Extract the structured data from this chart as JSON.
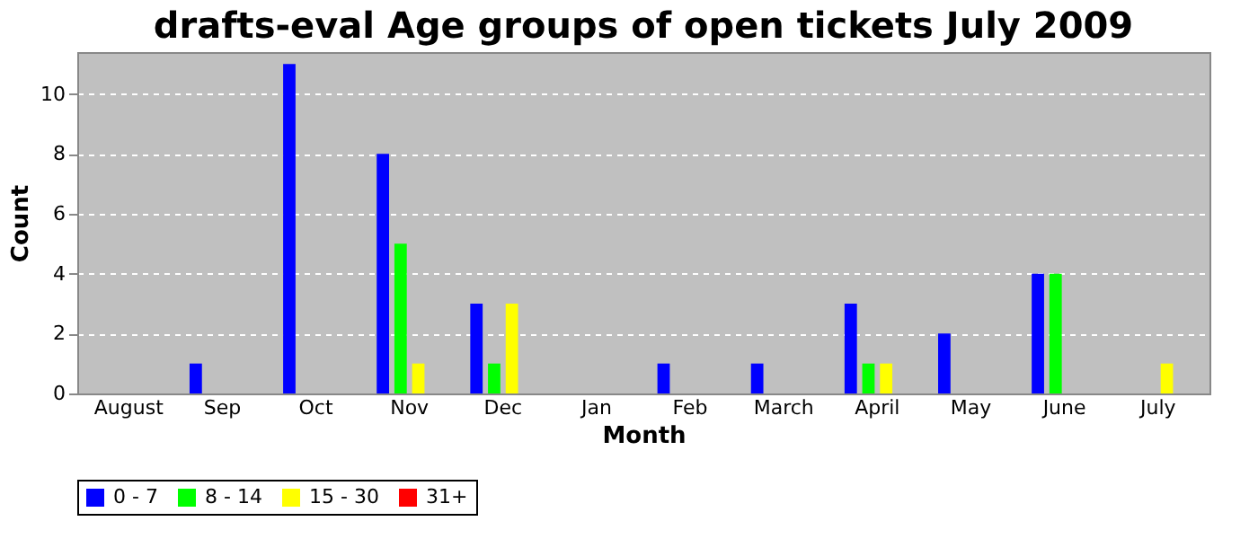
{
  "chart_data": {
    "type": "bar",
    "title": "drafts-eval Age groups of open tickets July 2009",
    "xlabel": "Month",
    "ylabel": "Count",
    "categories": [
      "August",
      "Sep",
      "Oct",
      "Nov",
      "Dec",
      "Jan",
      "Feb",
      "March",
      "April",
      "May",
      "June",
      "July"
    ],
    "series": [
      {
        "name": "0 - 7",
        "color": "#0000ff",
        "values": [
          0,
          1,
          11,
          8,
          3,
          0,
          1,
          1,
          3,
          2,
          4,
          0
        ]
      },
      {
        "name": "8 - 14",
        "color": "#00ff00",
        "values": [
          0,
          0,
          0,
          5,
          1,
          0,
          0,
          0,
          1,
          0,
          4,
          0
        ]
      },
      {
        "name": "15 - 30",
        "color": "#ffff00",
        "values": [
          0,
          0,
          0,
          1,
          3,
          0,
          0,
          0,
          1,
          0,
          0,
          1
        ]
      },
      {
        "name": "31+",
        "color": "#ff0000",
        "values": [
          0,
          0,
          0,
          0,
          0,
          0,
          0,
          0,
          0,
          0,
          0,
          0
        ]
      }
    ],
    "ylim": [
      0,
      11.4
    ],
    "yticks": [
      0,
      2,
      4,
      6,
      8,
      10
    ],
    "grid": "y",
    "legend": "bottom"
  }
}
